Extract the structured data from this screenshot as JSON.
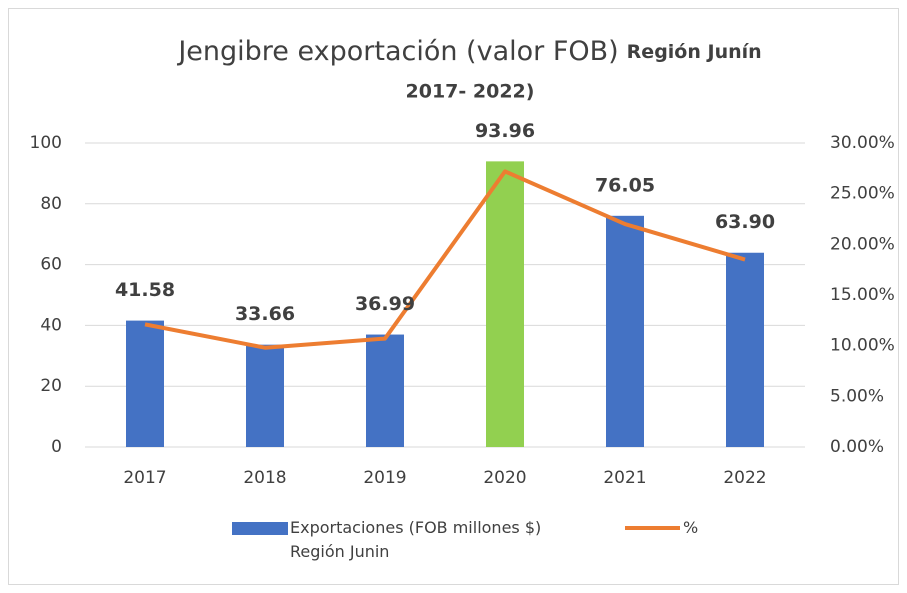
{
  "chart_data": {
    "type": "bar-line",
    "title": "Jengibre exportación (valor FOB)",
    "title_bold": [
      "Región Junín",
      "2017- 2022)"
    ],
    "categories": [
      "2017",
      "2018",
      "2019",
      "2020",
      "2021",
      "2022"
    ],
    "series": [
      {
        "name": "Exportaciones (FOB millones $) Región Junin",
        "type": "bar",
        "color": "#4472c4",
        "colors": [
          "#4472c4",
          "#4472c4",
          "#4472c4",
          "#92d050",
          "#4472c4",
          "#4472c4"
        ],
        "values": [
          41.58,
          33.66,
          36.99,
          93.96,
          76.05,
          63.9
        ],
        "value_labels": [
          "41.58",
          "33.66",
          "36.99",
          "93.96",
          "76.05",
          "63.90"
        ]
      },
      {
        "name": "%",
        "type": "line",
        "color": "#ed7d31",
        "axis": "y2",
        "values": [
          12.1,
          9.8,
          10.7,
          27.2,
          22.0,
          18.5
        ]
      }
    ],
    "ylim": [
      0,
      100
    ],
    "yticks": [
      0,
      20,
      40,
      60,
      80,
      100
    ],
    "y2lim": [
      0,
      30
    ],
    "y2ticks": [
      {
        "value": 0,
        "label": "0.00%"
      },
      {
        "value": 5,
        "label": "5.00%"
      },
      {
        "value": 10,
        "label": "10.00%"
      },
      {
        "value": 15,
        "label": "15.00%"
      },
      {
        "value": 20,
        "label": "20.00%"
      },
      {
        "value": 25,
        "label": "25.00%"
      },
      {
        "value": 30,
        "label": "30.00%"
      }
    ],
    "grid": true
  }
}
